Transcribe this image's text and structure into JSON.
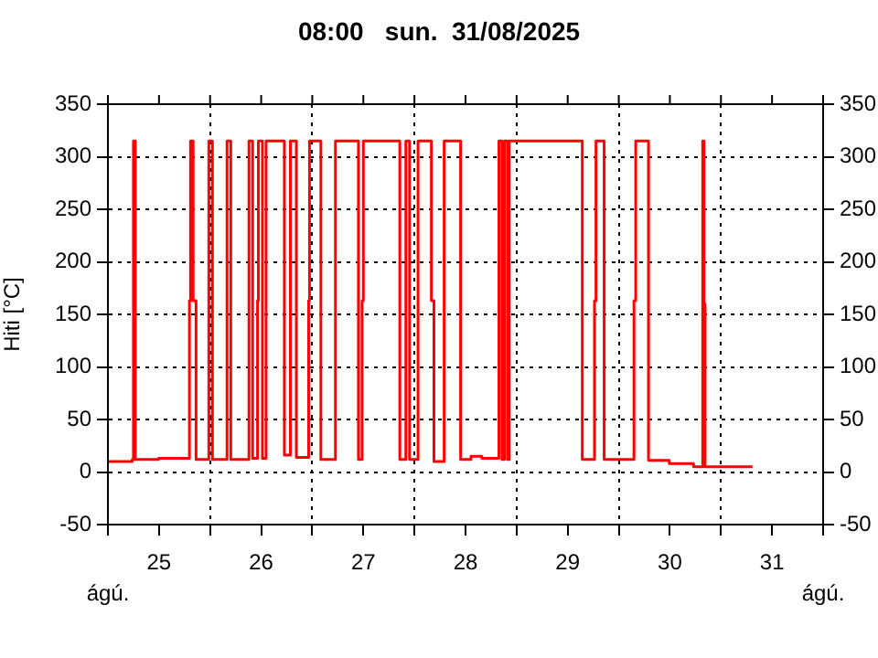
{
  "chart_data": {
    "type": "step",
    "title": "08:00   sun.  31/08/2025",
    "ylabel": "Hiti [°C]",
    "annotations": [
      "ágú.",
      "ágú."
    ],
    "x": [
      "2025-08-25T00:00",
      "2025-08-25T05:42",
      "2025-08-25T06:00",
      "2025-08-25T06:26",
      "2025-08-25T11:52",
      "2025-08-25T19:09",
      "2025-08-25T19:25",
      "2025-08-25T20:01",
      "2025-08-25T20:42",
      "2025-08-25T23:42",
      "2025-08-26T00:33",
      "2025-08-26T03:59",
      "2025-08-26T04:51",
      "2025-08-26T09:08",
      "2025-08-26T09:59",
      "2025-08-26T11:09",
      "2025-08-26T11:21",
      "2025-08-26T12:18",
      "2025-08-26T13:09",
      "2025-08-26T17:27",
      "2025-08-26T18:51",
      "2025-08-26T20:16",
      "2025-08-26T23:09",
      "2025-08-26T23:21",
      "2025-08-27T02:01",
      "2025-08-27T05:27",
      "2025-08-27T10:51",
      "2025-08-27T11:42",
      "2025-08-27T12:00",
      "2025-08-27T20:34",
      "2025-08-27T21:59",
      "2025-08-27T22:51",
      "2025-08-28T00:51",
      "2025-08-28T03:59",
      "2025-08-28T04:35",
      "2025-08-28T06:59",
      "2025-08-28T10:51",
      "2025-08-28T13:17",
      "2025-08-28T15:51",
      "2025-08-28T19:51",
      "2025-08-28T20:34",
      "2025-08-28T21:08",
      "2025-08-28T21:51",
      "2025-08-28T22:17",
      "2025-08-29T15:26",
      "2025-08-29T18:18",
      "2025-08-29T18:39",
      "2025-08-29T20:34",
      "2025-08-30T03:34",
      "2025-08-30T03:59",
      "2025-08-30T06:59",
      "2025-08-30T11:52",
      "2025-08-30T17:34",
      "2025-08-30T19:43",
      "2025-08-30T20:01",
      "2025-08-30T20:16",
      "2025-08-31T07:25"
    ],
    "series": [
      {
        "color": "#ff0000",
        "values": [
          10,
          12,
          315,
          12,
          13,
          163,
          315,
          163,
          12,
          315,
          12,
          315,
          12,
          315,
          13,
          163,
          315,
          13,
          315,
          16,
          315,
          14,
          163,
          315,
          12,
          315,
          12,
          163,
          315,
          12,
          315,
          12,
          315,
          163,
          10,
          315,
          12,
          15,
          13,
          315,
          12,
          315,
          12,
          315,
          12,
          163,
          315,
          12,
          163,
          315,
          11,
          8,
          5,
          315,
          160,
          5,
          5
        ]
      }
    ],
    "xlim": [
      "2025-08-25T00:00",
      "2025-09-01T00:00"
    ],
    "xticks": [
      {
        "value": "2025-08-25T00:00",
        "label": null
      },
      {
        "value": "2025-08-25T12:00",
        "label": "25"
      },
      {
        "value": "2025-08-26T00:00",
        "label": null
      },
      {
        "value": "2025-08-26T12:00",
        "label": "26"
      },
      {
        "value": "2025-08-27T00:00",
        "label": null
      },
      {
        "value": "2025-08-27T12:00",
        "label": "27"
      },
      {
        "value": "2025-08-28T00:00",
        "label": null
      },
      {
        "value": "2025-08-28T12:00",
        "label": "28"
      },
      {
        "value": "2025-08-29T00:00",
        "label": null
      },
      {
        "value": "2025-08-29T12:00",
        "label": "29"
      },
      {
        "value": "2025-08-30T00:00",
        "label": null
      },
      {
        "value": "2025-08-30T12:00",
        "label": "30"
      },
      {
        "value": "2025-08-31T00:00",
        "label": null
      },
      {
        "value": "2025-08-31T12:00",
        "label": "31"
      },
      {
        "value": "2025-09-01T00:00",
        "label": null
      }
    ],
    "ylim": [
      -50,
      350
    ],
    "yticks": [
      -50,
      0,
      50,
      100,
      150,
      200,
      250,
      300,
      350
    ],
    "y2lim": [
      -50,
      350
    ],
    "y2ticks": [
      -50,
      0,
      50,
      100,
      150,
      200,
      250,
      300,
      350
    ],
    "grid": true,
    "legend": false,
    "marker": "none",
    "line_style": "solid"
  }
}
